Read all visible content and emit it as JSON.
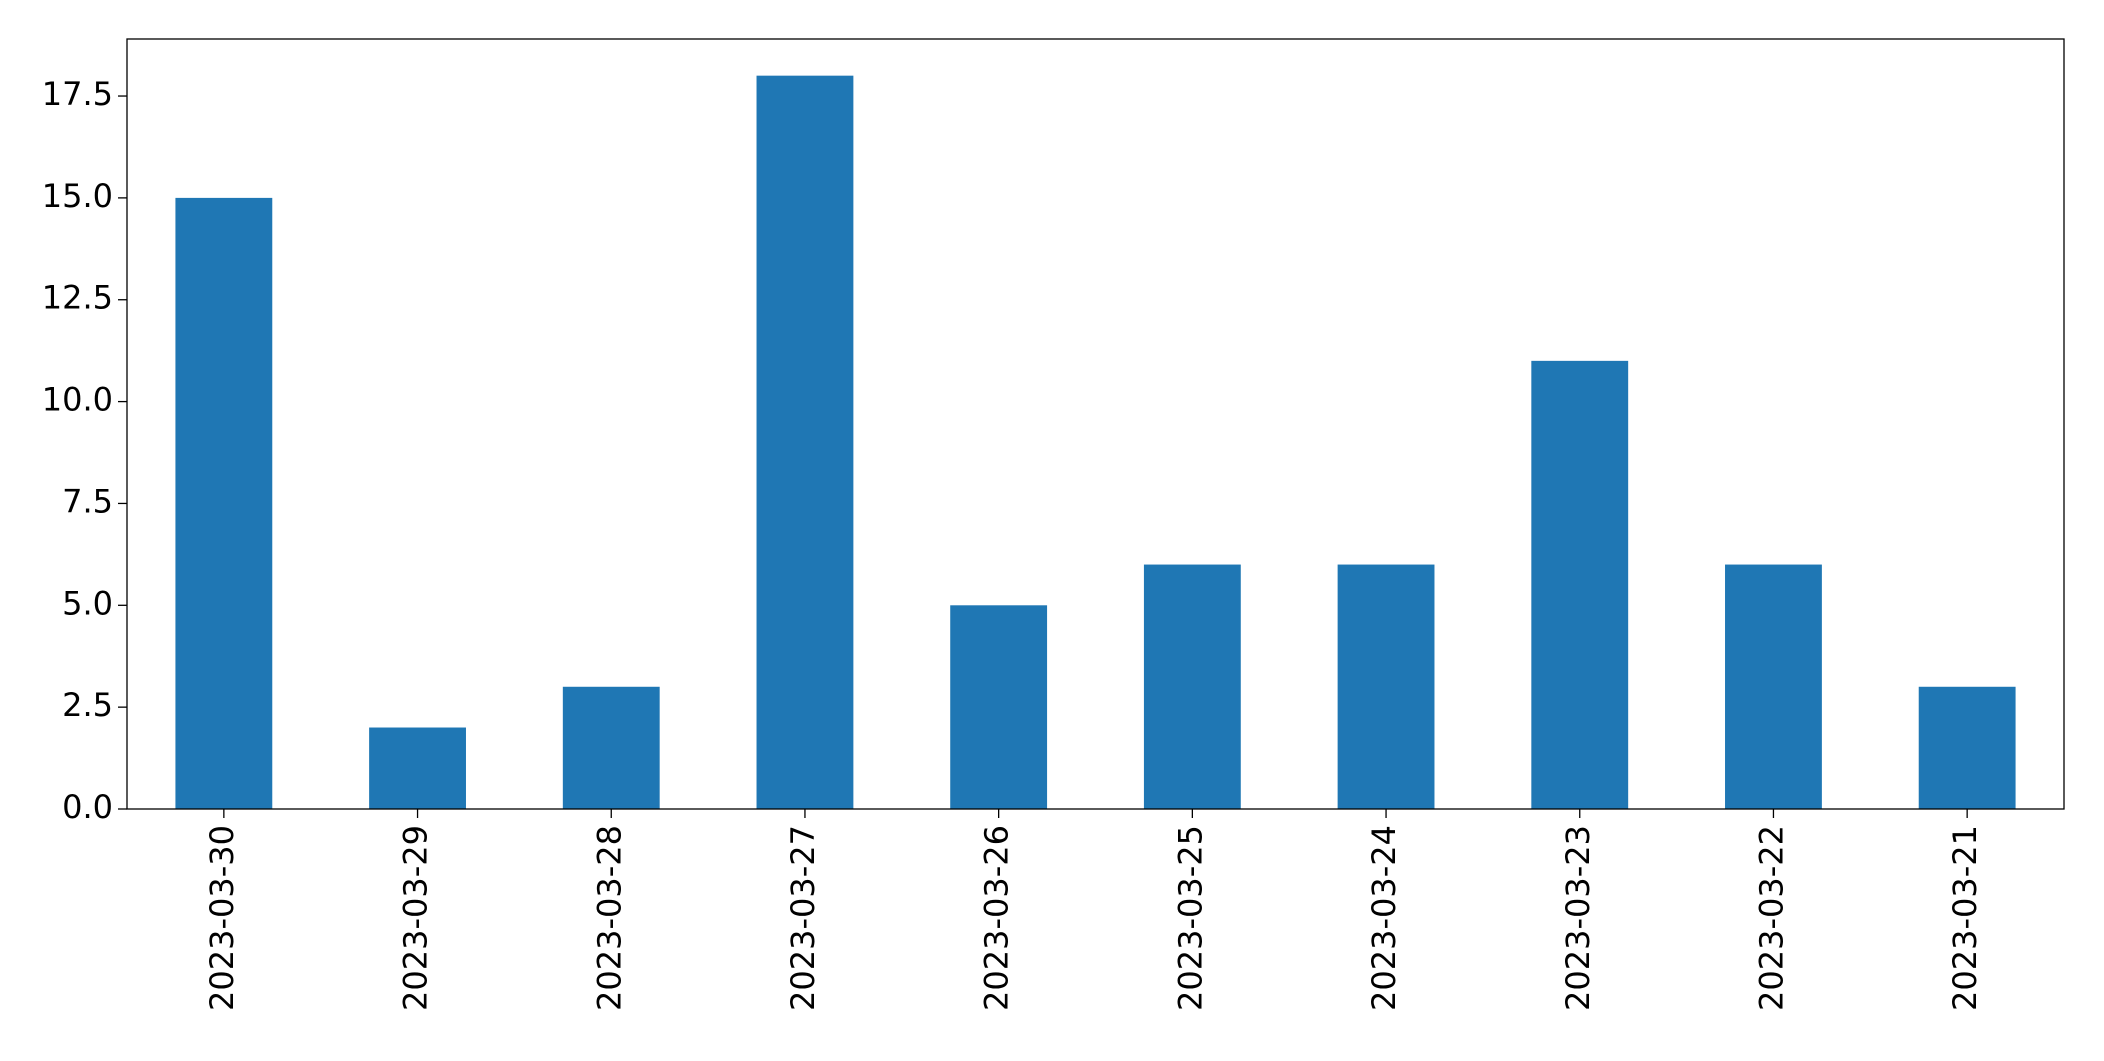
{
  "chart_data": {
    "type": "bar",
    "categories": [
      "2023-03-30",
      "2023-03-29",
      "2023-03-28",
      "2023-03-27",
      "2023-03-26",
      "2023-03-25",
      "2023-03-24",
      "2023-03-23",
      "2023-03-22",
      "2023-03-21"
    ],
    "values": [
      15,
      2,
      3,
      18,
      5,
      6,
      6,
      11,
      6,
      3
    ],
    "color": "#1f77b4",
    "ylim": [
      0,
      18.9
    ],
    "yticks": [
      {
        "value": 0,
        "label": "0.0"
      },
      2.5,
      {
        "value": 5,
        "label": "5.0"
      },
      7.5,
      {
        "value": 10,
        "label": "10.0"
      },
      12.5,
      {
        "value": 15,
        "label": "15.0"
      },
      17.5
    ],
    "grid": false
  }
}
